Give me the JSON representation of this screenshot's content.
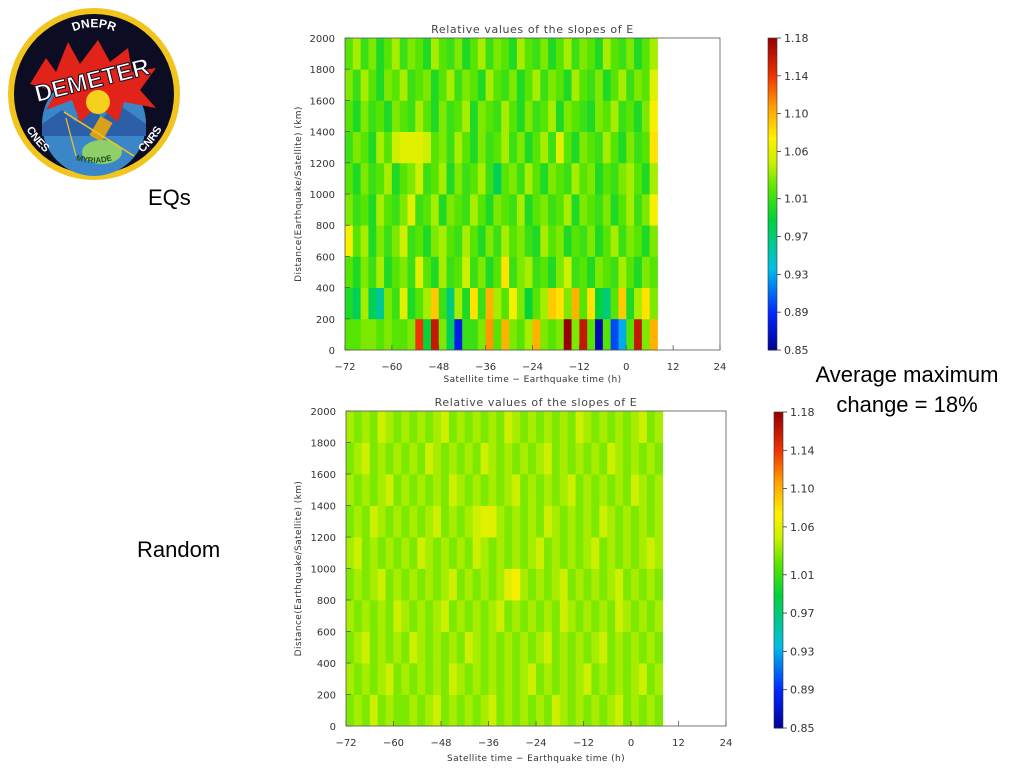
{
  "logo": {
    "top_text": "DNEPR",
    "main_text": "DEMETER",
    "left_text": "CNES",
    "right_text": "CNRS",
    "bottom_text": "MYRIADE"
  },
  "labels": {
    "eqs": "EQs",
    "random": "Random"
  },
  "note": {
    "line1": "Average maximum",
    "line2": "change = 18%"
  },
  "chart_data": [
    {
      "type": "heatmap",
      "title": "Relative values of the slopes of E",
      "xlabel": "Satellite time − Earthquake time (h)",
      "ylabel": "Distance(Earthquake/Satellite) (km)",
      "xlim": [
        -72,
        24
      ],
      "ylim": [
        0,
        2000
      ],
      "x_ticks": [
        "−72",
        "−60",
        "−48",
        "−36",
        "−24",
        "−12",
        "0",
        "12",
        "24"
      ],
      "x_tick_values": [
        -72,
        -60,
        -48,
        -36,
        -24,
        -12,
        0,
        12,
        24
      ],
      "y_ticks": [
        "0",
        "200",
        "400",
        "600",
        "800",
        "1000",
        "1200",
        "1400",
        "1600",
        "1800",
        "2000"
      ],
      "y_tick_values": [
        0,
        200,
        400,
        600,
        800,
        1000,
        1200,
        1400,
        1600,
        1800,
        2000
      ],
      "x_bin_hours": 2,
      "y_bin_km": 200,
      "colorbar": {
        "min": 0.85,
        "max": 1.18,
        "labels": [
          "1.18",
          "1.14",
          "1.10",
          "1.06",
          "1.01",
          "0.97",
          "0.93",
          "0.89",
          "0.85"
        ],
        "label_values": [
          1.18,
          1.14,
          1.1,
          1.06,
          1.01,
          0.97,
          0.93,
          0.89,
          0.85
        ]
      },
      "rows_bottom_to_top": [
        [
          1.02,
          1.02,
          1.03,
          1.03,
          1.02,
          1.03,
          1.02,
          1.02,
          1.03,
          1.14,
          0.99,
          1.16,
          1.03,
          0.98,
          0.88,
          1.01,
          1.01,
          1.03,
          1.11,
          1.02,
          1.1,
          1.03,
          1.02,
          1.04,
          1.1,
          1.03,
          1.02,
          1.03,
          1.18,
          1.03,
          1.16,
          1.02,
          0.86,
          1.02,
          0.9,
          0.93,
          1.02,
          1.16,
          1.03,
          1.1
        ],
        [
          1.0,
          0.98,
          1.04,
          0.98,
          0.96,
          1.03,
          1.01,
          1.06,
          1.0,
          1.02,
          1.04,
          1.09,
          1.01,
          0.97,
          1.04,
          1.0,
          1.08,
          1.01,
          1.1,
          1.04,
          1.02,
          1.07,
          1.03,
          0.99,
          1.02,
          1.04,
          1.09,
          1.08,
          1.03,
          1.1,
          1.02,
          1.08,
          0.99,
          0.97,
          1.02,
          1.09,
          1.0,
          1.04,
          1.08,
          1.03
        ],
        [
          1.02,
          1.0,
          1.03,
          1.01,
          1.04,
          1.0,
          1.02,
          1.03,
          1.01,
          1.06,
          1.02,
          1.0,
          1.04,
          1.01,
          1.02,
          1.05,
          1.01,
          1.03,
          1.0,
          1.02,
          1.08,
          1.01,
          1.03,
          1.04,
          1.01,
          1.02,
          1.0,
          1.03,
          1.05,
          1.01,
          1.02,
          1.0,
          1.03,
          1.02,
          1.01,
          1.04,
          1.02,
          1.0,
          1.03,
          1.02
        ],
        [
          1.07,
          1.02,
          1.04,
          1.0,
          1.03,
          1.01,
          1.03,
          1.05,
          1.01,
          1.02,
          1.0,
          1.03,
          1.04,
          1.02,
          1.01,
          1.04,
          1.02,
          1.0,
          1.03,
          1.01,
          1.04,
          1.02,
          1.03,
          1.01,
          1.0,
          1.04,
          1.02,
          1.03,
          1.0,
          1.02,
          1.01,
          1.03,
          1.0,
          1.02,
          1.04,
          1.01,
          1.03,
          1.02,
          1.0,
          1.03
        ],
        [
          1.03,
          1.01,
          1.02,
          1.0,
          1.04,
          1.02,
          1.01,
          1.03,
          1.06,
          1.01,
          1.02,
          1.04,
          1.0,
          1.03,
          1.02,
          1.01,
          1.04,
          1.02,
          1.0,
          1.03,
          1.02,
          1.01,
          1.04,
          1.0,
          1.02,
          1.03,
          1.01,
          1.02,
          1.04,
          1.0,
          1.03,
          1.02,
          1.01,
          1.03,
          1.0,
          1.02,
          1.04,
          1.01,
          1.03,
          1.07
        ],
        [
          1.02,
          1.0,
          1.03,
          1.01,
          1.02,
          1.04,
          1.0,
          1.02,
          1.03,
          1.05,
          1.01,
          1.02,
          1.04,
          1.0,
          1.03,
          1.01,
          1.02,
          1.04,
          1.01,
          0.98,
          1.02,
          1.03,
          1.01,
          1.04,
          1.02,
          1.0,
          1.03,
          1.02,
          1.01,
          1.04,
          1.02,
          1.03,
          1.0,
          1.02,
          1.01,
          1.03,
          1.04,
          1.02,
          1.0,
          1.04
        ],
        [
          1.01,
          1.03,
          1.02,
          1.0,
          1.04,
          1.02,
          1.05,
          1.06,
          1.06,
          1.06,
          1.05,
          1.02,
          1.03,
          1.01,
          1.04,
          1.02,
          1.0,
          1.03,
          1.01,
          1.02,
          1.04,
          1.01,
          1.03,
          1.0,
          1.02,
          1.04,
          1.01,
          1.06,
          1.02,
          1.0,
          1.03,
          1.02,
          1.01,
          1.04,
          1.02,
          1.0,
          1.03,
          1.01,
          1.02,
          1.08
        ],
        [
          1.02,
          1.0,
          1.03,
          1.01,
          1.02,
          1.0,
          1.03,
          1.02,
          1.01,
          1.04,
          1.02,
          1.0,
          1.03,
          1.01,
          1.02,
          1.04,
          1.0,
          1.03,
          1.02,
          1.01,
          1.04,
          1.02,
          1.0,
          1.03,
          1.01,
          1.02,
          1.04,
          1.0,
          1.03,
          1.02,
          1.01,
          1.0,
          1.03,
          1.02,
          1.04,
          1.01,
          1.02,
          1.0,
          1.03,
          1.07
        ],
        [
          1.03,
          1.01,
          1.04,
          1.02,
          1.0,
          1.03,
          1.02,
          1.04,
          1.01,
          1.02,
          1.03,
          1.0,
          1.02,
          1.04,
          1.01,
          1.03,
          1.02,
          1.0,
          1.04,
          1.02,
          1.01,
          1.03,
          1.0,
          1.02,
          1.04,
          1.01,
          1.03,
          1.02,
          1.0,
          1.04,
          1.02,
          1.01,
          1.03,
          1.0,
          1.02,
          1.04,
          1.01,
          1.03,
          1.02,
          1.06
        ],
        [
          1.02,
          1.04,
          1.01,
          1.03,
          1.0,
          1.02,
          1.04,
          1.01,
          1.03,
          1.02,
          1.0,
          1.04,
          1.02,
          1.01,
          1.03,
          1.0,
          1.02,
          1.04,
          1.01,
          1.03,
          1.02,
          1.0,
          1.04,
          1.02,
          1.01,
          1.03,
          1.0,
          1.02,
          1.04,
          1.01,
          1.03,
          1.02,
          1.0,
          1.04,
          1.02,
          1.01,
          1.03,
          1.0,
          1.02,
          1.04
        ]
      ]
    },
    {
      "type": "heatmap",
      "title": "Relative values of the slopes of E",
      "xlabel": "Satellite time − Earthquake time (h)",
      "ylabel": "Distance(Earthquake/Satellite) (km)",
      "xlim": [
        -72,
        24
      ],
      "ylim": [
        0,
        2000
      ],
      "x_ticks": [
        "−72",
        "−60",
        "−48",
        "−36",
        "−24",
        "−12",
        "0",
        "12",
        "24"
      ],
      "x_tick_values": [
        -72,
        -60,
        -48,
        -36,
        -24,
        -12,
        0,
        12,
        24
      ],
      "y_ticks": [
        "0",
        "200",
        "400",
        "600",
        "800",
        "1000",
        "1200",
        "1400",
        "1600",
        "1800",
        "2000"
      ],
      "y_tick_values": [
        0,
        200,
        400,
        600,
        800,
        1000,
        1200,
        1400,
        1600,
        1800,
        2000
      ],
      "x_bin_hours": 2,
      "y_bin_km": 200,
      "colorbar": {
        "min": 0.85,
        "max": 1.18,
        "labels": [
          "1.18",
          "1.14",
          "1.10",
          "1.06",
          "1.01",
          "0.97",
          "0.93",
          "0.89",
          "0.85"
        ],
        "label_values": [
          1.18,
          1.14,
          1.1,
          1.06,
          1.01,
          0.97,
          0.93,
          0.89,
          0.85
        ]
      },
      "rows_bottom_to_top": [
        [
          1.03,
          1.04,
          1.03,
          1.05,
          1.03,
          1.04,
          1.03,
          1.03,
          1.04,
          1.03,
          1.04,
          1.05,
          1.03,
          1.04,
          1.03,
          1.04,
          1.03,
          1.04,
          1.05,
          1.03,
          1.04,
          1.03,
          1.04,
          1.03,
          1.04,
          1.03,
          1.05,
          1.04,
          1.03,
          1.04,
          1.03,
          1.04,
          1.03,
          1.04,
          1.05,
          1.03,
          1.04,
          1.03,
          1.04,
          1.03
        ],
        [
          1.04,
          1.03,
          1.04,
          1.03,
          1.04,
          1.05,
          1.03,
          1.04,
          1.03,
          1.04,
          1.03,
          1.04,
          1.03,
          1.05,
          1.04,
          1.03,
          1.04,
          1.03,
          1.04,
          1.03,
          1.04,
          1.03,
          1.04,
          1.05,
          1.03,
          1.04,
          1.03,
          1.04,
          1.03,
          1.04,
          1.05,
          1.03,
          1.04,
          1.03,
          1.04,
          1.03,
          1.04,
          1.05,
          1.03,
          1.04
        ],
        [
          1.03,
          1.04,
          1.05,
          1.03,
          1.04,
          1.03,
          1.04,
          1.03,
          1.05,
          1.04,
          1.03,
          1.04,
          1.03,
          1.04,
          1.03,
          1.05,
          1.04,
          1.03,
          1.04,
          1.03,
          1.04,
          1.03,
          1.04,
          1.03,
          1.04,
          1.05,
          1.03,
          1.04,
          1.03,
          1.04,
          1.03,
          1.04,
          1.05,
          1.03,
          1.04,
          1.03,
          1.04,
          1.03,
          1.04,
          1.03
        ],
        [
          1.04,
          1.03,
          1.04,
          1.03,
          1.04,
          1.03,
          1.05,
          1.04,
          1.03,
          1.04,
          1.03,
          1.04,
          1.05,
          1.03,
          1.04,
          1.03,
          1.04,
          1.03,
          1.04,
          1.05,
          1.03,
          1.04,
          1.03,
          1.04,
          1.03,
          1.04,
          1.03,
          1.05,
          1.04,
          1.03,
          1.04,
          1.03,
          1.04,
          1.03,
          1.05,
          1.04,
          1.03,
          1.04,
          1.03,
          1.04
        ],
        [
          1.03,
          1.04,
          1.03,
          1.04,
          1.05,
          1.03,
          1.04,
          1.03,
          1.04,
          1.03,
          1.04,
          1.03,
          1.04,
          1.05,
          1.03,
          1.04,
          1.03,
          1.04,
          1.03,
          1.04,
          1.06,
          1.07,
          1.04,
          1.03,
          1.04,
          1.03,
          1.04,
          1.05,
          1.03,
          1.04,
          1.03,
          1.04,
          1.03,
          1.04,
          1.05,
          1.03,
          1.04,
          1.03,
          1.04,
          1.03
        ],
        [
          1.04,
          1.05,
          1.03,
          1.04,
          1.03,
          1.04,
          1.03,
          1.04,
          1.03,
          1.05,
          1.04,
          1.03,
          1.04,
          1.03,
          1.04,
          1.03,
          1.05,
          1.04,
          1.03,
          1.04,
          1.03,
          1.04,
          1.03,
          1.04,
          1.05,
          1.03,
          1.04,
          1.03,
          1.04,
          1.03,
          1.04,
          1.05,
          1.03,
          1.04,
          1.03,
          1.04,
          1.03,
          1.04,
          1.05,
          1.04
        ],
        [
          1.03,
          1.04,
          1.03,
          1.05,
          1.04,
          1.03,
          1.04,
          1.03,
          1.04,
          1.03,
          1.04,
          1.05,
          1.03,
          1.04,
          1.03,
          1.04,
          1.05,
          1.06,
          1.06,
          1.04,
          1.03,
          1.04,
          1.03,
          1.04,
          1.03,
          1.05,
          1.04,
          1.03,
          1.04,
          1.03,
          1.04,
          1.03,
          1.05,
          1.04,
          1.03,
          1.04,
          1.03,
          1.04,
          1.03,
          1.04
        ],
        [
          1.04,
          1.03,
          1.04,
          1.03,
          1.04,
          1.05,
          1.03,
          1.04,
          1.03,
          1.04,
          1.03,
          1.04,
          1.03,
          1.05,
          1.04,
          1.03,
          1.04,
          1.03,
          1.04,
          1.03,
          1.04,
          1.05,
          1.03,
          1.04,
          1.03,
          1.04,
          1.03,
          1.04,
          1.05,
          1.03,
          1.04,
          1.03,
          1.04,
          1.03,
          1.04,
          1.03,
          1.05,
          1.04,
          1.03,
          1.04
        ],
        [
          1.03,
          1.04,
          1.05,
          1.03,
          1.04,
          1.03,
          1.04,
          1.03,
          1.04,
          1.03,
          1.05,
          1.04,
          1.03,
          1.04,
          1.03,
          1.04,
          1.03,
          1.05,
          1.04,
          1.03,
          1.04,
          1.03,
          1.04,
          1.03,
          1.04,
          1.05,
          1.03,
          1.04,
          1.03,
          1.04,
          1.03,
          1.04,
          1.03,
          1.05,
          1.04,
          1.03,
          1.04,
          1.03,
          1.04,
          1.03
        ],
        [
          1.04,
          1.03,
          1.04,
          1.03,
          1.05,
          1.04,
          1.03,
          1.04,
          1.03,
          1.04,
          1.03,
          1.04,
          1.05,
          1.03,
          1.04,
          1.03,
          1.04,
          1.03,
          1.04,
          1.03,
          1.05,
          1.04,
          1.03,
          1.04,
          1.03,
          1.04,
          1.03,
          1.04,
          1.03,
          1.05,
          1.04,
          1.03,
          1.04,
          1.03,
          1.04,
          1.03,
          1.04,
          1.05,
          1.03,
          1.04
        ]
      ]
    }
  ]
}
